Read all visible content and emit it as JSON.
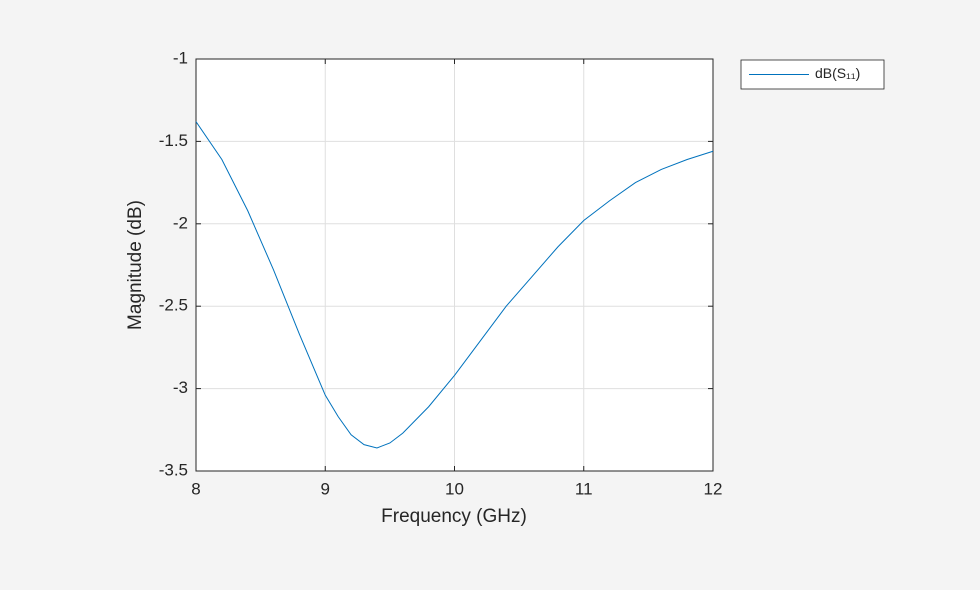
{
  "chart_data": {
    "type": "line",
    "xlabel": "Frequency (GHz)",
    "ylabel": "Magnitude (dB)",
    "x": [
      8.0,
      8.2,
      8.4,
      8.6,
      8.8,
      9.0,
      9.1,
      9.2,
      9.3,
      9.4,
      9.5,
      9.6,
      9.8,
      10.0,
      10.2,
      10.4,
      10.6,
      10.8,
      11.0,
      11.2,
      11.4,
      11.6,
      11.8,
      12.0
    ],
    "series": [
      {
        "name": "dB(S₁₁)",
        "color": "#0072bd",
        "values": [
          -1.38,
          -1.61,
          -1.92,
          -2.28,
          -2.67,
          -3.04,
          -3.17,
          -3.28,
          -3.34,
          -3.36,
          -3.33,
          -3.27,
          -3.11,
          -2.92,
          -2.71,
          -2.5,
          -2.32,
          -2.14,
          -1.98,
          -1.86,
          -1.75,
          -1.67,
          -1.61,
          -1.56
        ]
      }
    ],
    "xlim": [
      8,
      12
    ],
    "xticks": [
      8,
      9,
      10,
      11,
      12
    ],
    "ylim": [
      -3.5,
      -1
    ],
    "yticks": [
      -3.5,
      -3,
      -2.5,
      -2,
      -1.5,
      -1
    ],
    "grid": true,
    "legend": "northeastoutside"
  }
}
